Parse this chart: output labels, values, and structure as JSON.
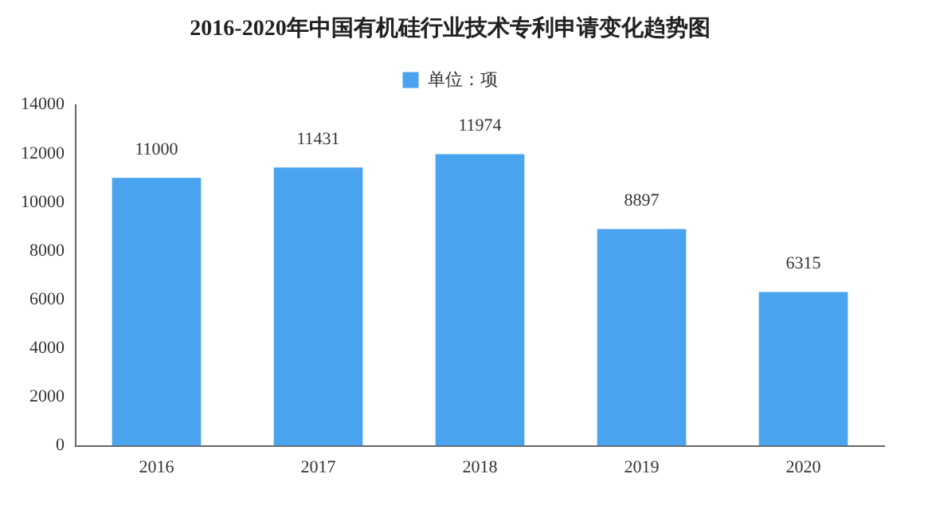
{
  "chart_data": {
    "type": "bar",
    "title": "2016-2020年中国有机硅行业技术专利申请变化趋势图",
    "categories": [
      "2016",
      "2017",
      "2018",
      "2019",
      "2020"
    ],
    "series": [
      {
        "name": "单位：项",
        "color": "#4aa3ee",
        "values": [
          11000,
          11431,
          11974,
          8897,
          6315
        ]
      }
    ],
    "ylim": [
      0,
      14000
    ],
    "yticks": [
      0,
      2000,
      4000,
      6000,
      8000,
      10000,
      12000,
      14000
    ],
    "grid": false,
    "legend": "top",
    "data_labels": true
  }
}
